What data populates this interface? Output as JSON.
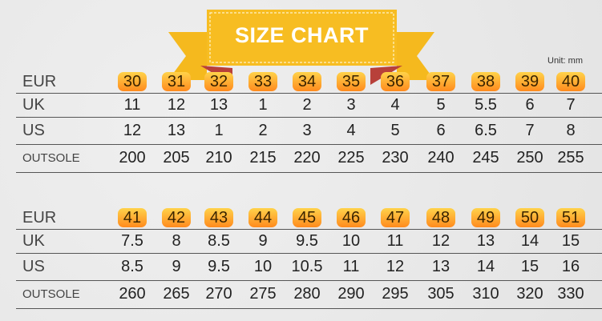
{
  "title": "SIZE CHART",
  "unit": "Unit:  mm",
  "colors": {
    "banner": "#f5b91e",
    "banner_dark": "#b8403a",
    "badge_top": "#ffd24a",
    "badge_bottom": "#ff8a1e"
  },
  "labels": {
    "eur": "EUR",
    "uk": "UK",
    "us": "US",
    "outsole": "OUTSOLE"
  },
  "tables": [
    {
      "eur": [
        "30",
        "31",
        "32",
        "33",
        "34",
        "35",
        "36",
        "37",
        "38",
        "39",
        "40"
      ],
      "uk": [
        "11",
        "12",
        "13",
        "1",
        "2",
        "3",
        "4",
        "5",
        "5.5",
        "6",
        "7"
      ],
      "us": [
        "12",
        "13",
        "1",
        "2",
        "3",
        "4",
        "5",
        "6",
        "6.5",
        "7",
        "8"
      ],
      "outsole": [
        "200",
        "205",
        "210",
        "215",
        "220",
        "225",
        "230",
        "240",
        "245",
        "250",
        "255"
      ]
    },
    {
      "eur": [
        "41",
        "42",
        "43",
        "44",
        "45",
        "46",
        "47",
        "48",
        "49",
        "50",
        "51"
      ],
      "uk": [
        "7.5",
        "8",
        "8.5",
        "9",
        "9.5",
        "10",
        "11",
        "12",
        "13",
        "14",
        "15"
      ],
      "us": [
        "8.5",
        "9",
        "9.5",
        "10",
        "10.5",
        "11",
        "12",
        "13",
        "14",
        "15",
        "16"
      ],
      "outsole": [
        "260",
        "265",
        "270",
        "275",
        "280",
        "290",
        "295",
        "305",
        "310",
        "320",
        "330"
      ]
    }
  ]
}
